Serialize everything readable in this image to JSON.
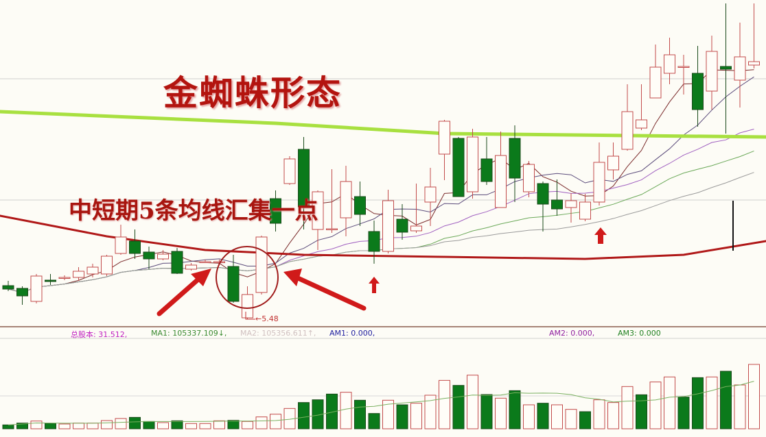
{
  "annotations": {
    "title": "金蜘蛛形态",
    "subtitle": "中短期5条均线汇集一点",
    "low_label": "5.48",
    "low_arrow": "←"
  },
  "indicator_bar": {
    "items": [
      {
        "text": "总股本: 31.512,",
        "color": "#c020c0"
      },
      {
        "text": "MA1: 105337.109↓,",
        "color": "#3a8a30"
      },
      {
        "text": "MA2: 105356.611↑,",
        "color": "#d0c0c0"
      },
      {
        "text": "AM1: 0.000,",
        "color": "#2020a0"
      },
      {
        "text": "AM2: 0.000,",
        "color": "#9020a0"
      },
      {
        "text": "AM3: 0.000",
        "color": "#208020"
      }
    ]
  },
  "colors": {
    "up": "#c24a4a",
    "down": "#0b7a1b",
    "ma_long_green": "#a8e040",
    "ma_long_red": "#b01818",
    "arrow": "#d01a1a"
  },
  "chart_data": {
    "type": "candlestick",
    "title": "金蜘蛛形态",
    "price_low_marked": 5.48,
    "candles_ohlc": [
      [
        5.97,
        6.04,
        5.89,
        5.92
      ],
      [
        5.93,
        5.96,
        5.69,
        5.82
      ],
      [
        5.74,
        6.14,
        5.71,
        6.11
      ],
      [
        6.05,
        6.14,
        5.98,
        6.03
      ],
      [
        6.09,
        6.12,
        6.05,
        6.09
      ],
      [
        6.09,
        6.24,
        6.04,
        6.18
      ],
      [
        6.14,
        6.29,
        6.09,
        6.24
      ],
      [
        6.14,
        6.42,
        6.11,
        6.4
      ],
      [
        6.44,
        6.86,
        6.42,
        6.68
      ],
      [
        6.62,
        6.79,
        6.36,
        6.44
      ],
      [
        6.46,
        6.54,
        6.21,
        6.36
      ],
      [
        6.36,
        6.49,
        6.34,
        6.43
      ],
      [
        6.47,
        6.52,
        6.14,
        6.15
      ],
      [
        6.21,
        6.3,
        6.19,
        6.27
      ],
      [
        6.32,
        6.35,
        6.3,
        6.32
      ],
      [
        6.31,
        6.35,
        6.29,
        6.32
      ],
      [
        6.25,
        6.42,
        5.72,
        5.74
      ],
      [
        5.5,
        5.96,
        5.48,
        5.84
      ],
      [
        5.87,
        6.7,
        5.84,
        6.68
      ],
      [
        7.24,
        7.36,
        6.76,
        6.88
      ],
      [
        7.46,
        7.86,
        7.44,
        7.82
      ],
      [
        7.96,
        8.14,
        6.79,
        7.12
      ],
      [
        6.79,
        7.36,
        6.49,
        7.34
      ],
      [
        6.8,
        7.67,
        6.74,
        6.8
      ],
      [
        6.96,
        7.72,
        6.69,
        7.49
      ],
      [
        7.27,
        7.49,
        6.84,
        7.01
      ],
      [
        6.76,
        6.92,
        6.29,
        6.47
      ],
      [
        6.47,
        7.37,
        6.44,
        7.21
      ],
      [
        6.94,
        7.16,
        6.64,
        6.75
      ],
      [
        6.77,
        7.46,
        6.74,
        6.84
      ],
      [
        7.19,
        7.69,
        6.84,
        7.41
      ],
      [
        7.89,
        8.39,
        7.51,
        8.37
      ],
      [
        8.12,
        8.14,
        7.27,
        7.27
      ],
      [
        7.34,
        8.26,
        7.24,
        8.14
      ],
      [
        7.82,
        8.14,
        7.44,
        7.49
      ],
      [
        7.11,
        8.22,
        7.11,
        7.87
      ],
      [
        8.12,
        8.31,
        7.19,
        7.54
      ],
      [
        7.34,
        7.79,
        7.26,
        7.74
      ],
      [
        7.46,
        7.49,
        6.76,
        7.16
      ],
      [
        7.22,
        7.52,
        6.99,
        7.09
      ],
      [
        7.11,
        7.32,
        6.89,
        7.21
      ],
      [
        6.94,
        7.31,
        6.91,
        7.19
      ],
      [
        7.19,
        8.06,
        7.14,
        7.77
      ],
      [
        7.66,
        8.06,
        7.52,
        7.86
      ],
      [
        7.96,
        8.91,
        7.94,
        8.51
      ],
      [
        8.27,
        8.91,
        8.24,
        8.39
      ],
      [
        8.71,
        9.49,
        8.71,
        9.16
      ],
      [
        9.07,
        9.59,
        8.91,
        9.34
      ],
      [
        9.17,
        9.34,
        8.76,
        9.17
      ],
      [
        9.07,
        9.47,
        8.29,
        8.54
      ],
      [
        8.81,
        9.62,
        8.54,
        9.39
      ],
      [
        9.17,
        10.09,
        8.19,
        9.13
      ],
      [
        8.97,
        9.81,
        8.57,
        9.31
      ],
      [
        9.19,
        10.09,
        9.14,
        9.24
      ]
    ],
    "ma_long_green": [
      [
        0,
        8.51
      ],
      [
        19,
        8.34
      ],
      [
        31,
        8.19
      ],
      [
        53,
        8.14
      ]
    ],
    "ma_long_red": [
      [
        0,
        6.99
      ],
      [
        7,
        6.69
      ],
      [
        14,
        6.49
      ],
      [
        21,
        6.42
      ],
      [
        31,
        6.39
      ],
      [
        41,
        6.36
      ],
      [
        48,
        6.42
      ],
      [
        53,
        6.62
      ]
    ],
    "volume_relative": [
      17,
      25,
      34,
      24,
      21,
      25,
      25,
      36,
      45,
      50,
      32,
      27,
      35,
      23,
      23,
      35,
      37,
      32,
      52,
      64,
      89,
      115,
      127,
      152,
      160,
      125,
      67,
      125,
      105,
      112,
      147,
      212,
      190,
      235,
      150,
      134,
      167,
      105,
      112,
      105,
      85,
      75,
      127,
      115,
      185,
      149,
      205,
      227,
      139,
      224,
      227,
      252,
      192,
      282
    ],
    "volume_down": [
      1,
      1,
      0,
      1,
      0,
      0,
      0,
      0,
      0,
      1,
      1,
      0,
      1,
      0,
      0,
      0,
      1,
      0,
      0,
      0,
      0,
      1,
      1,
      1,
      0,
      1,
      1,
      0,
      1,
      0,
      0,
      0,
      1,
      0,
      1,
      0,
      1,
      0,
      1,
      0,
      0,
      1,
      0,
      0,
      0,
      1,
      0,
      0,
      1,
      1,
      0,
      1,
      0,
      0
    ]
  }
}
